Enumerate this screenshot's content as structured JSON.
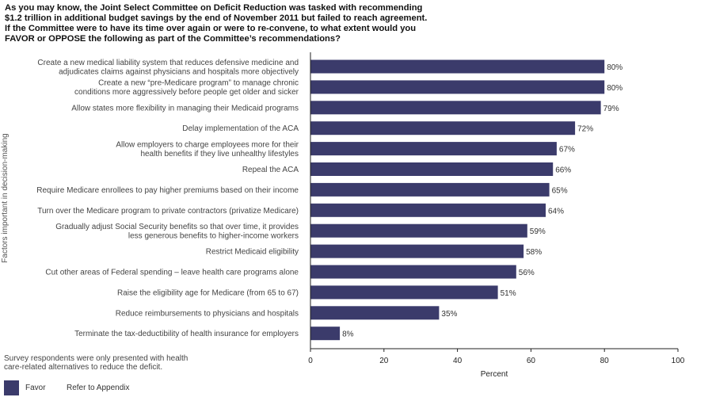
{
  "title_lines": [
    "As you may know, the Joint Select Committee on Deficit Reduction was tasked with recommending",
    "$1.2 trillion in additional budget savings by the end of November 2011 but failed to reach agreement.",
    "If the Committee were to have its time over again or were to re-convene, to what extent would you",
    "FAVOR or OPPOSE the following as part of the Committee’s recommendations?"
  ],
  "note_lines": [
    "Survey respondents were only presented with health",
    "care-related alternatives to reduce the deficit."
  ],
  "appendix_text": "Refer to Appendix",
  "chart_data": {
    "type": "bar",
    "orientation": "horizontal",
    "bar_color": "#3b3b6b",
    "ylabel": "Factors important in decision-making",
    "xlabel": "Percent",
    "xlim": [
      0,
      100
    ],
    "xticks": [
      0,
      20,
      40,
      60,
      80,
      100
    ],
    "legend": {
      "position": "bottom-left",
      "entries": [
        "Favor"
      ]
    },
    "categories": [
      [
        "Create a new medical liability system that reduces defensive medicine and",
        "adjudicates claims against physicians and hospitals more objectively"
      ],
      [
        "Create a new “pre-Medicare program” to manage chronic",
        "conditions more aggressively before people get older and sicker"
      ],
      [
        "Allow states more flexibility in managing their Medicaid programs"
      ],
      [
        "Delay implementation of the ACA"
      ],
      [
        "Allow employers to charge employees more for their",
        "health benefits if they live unhealthy lifestyles"
      ],
      [
        "Repeal the ACA"
      ],
      [
        "Require Medicare enrollees to pay higher premiums based on their income"
      ],
      [
        "Turn over the Medicare program to private contractors (privatize Medicare)"
      ],
      [
        "Gradually adjust Social Security benefits so that over time, it provides",
        "less generous benefits to higher-income workers"
      ],
      [
        "Restrict Medicaid eligibility"
      ],
      [
        "Cut other areas of Federal spending – leave health care programs alone"
      ],
      [
        "Raise the eligibility age for Medicare (from 65 to 67)"
      ],
      [
        "Reduce reimbursements to physicians and hospitals"
      ],
      [
        "Terminate the tax-deductibility of health insurance for employers"
      ]
    ],
    "series": [
      {
        "name": "Favor",
        "values": [
          80,
          80,
          79,
          72,
          67,
          66,
          65,
          64,
          59,
          58,
          56,
          51,
          35,
          8
        ]
      }
    ],
    "value_labels": [
      "80%",
      "80%",
      "79%",
      "72%",
      "67%",
      "66%",
      "65%",
      "64%",
      "59%",
      "58%",
      "56%",
      "51%",
      "35%",
      "8%"
    ]
  }
}
